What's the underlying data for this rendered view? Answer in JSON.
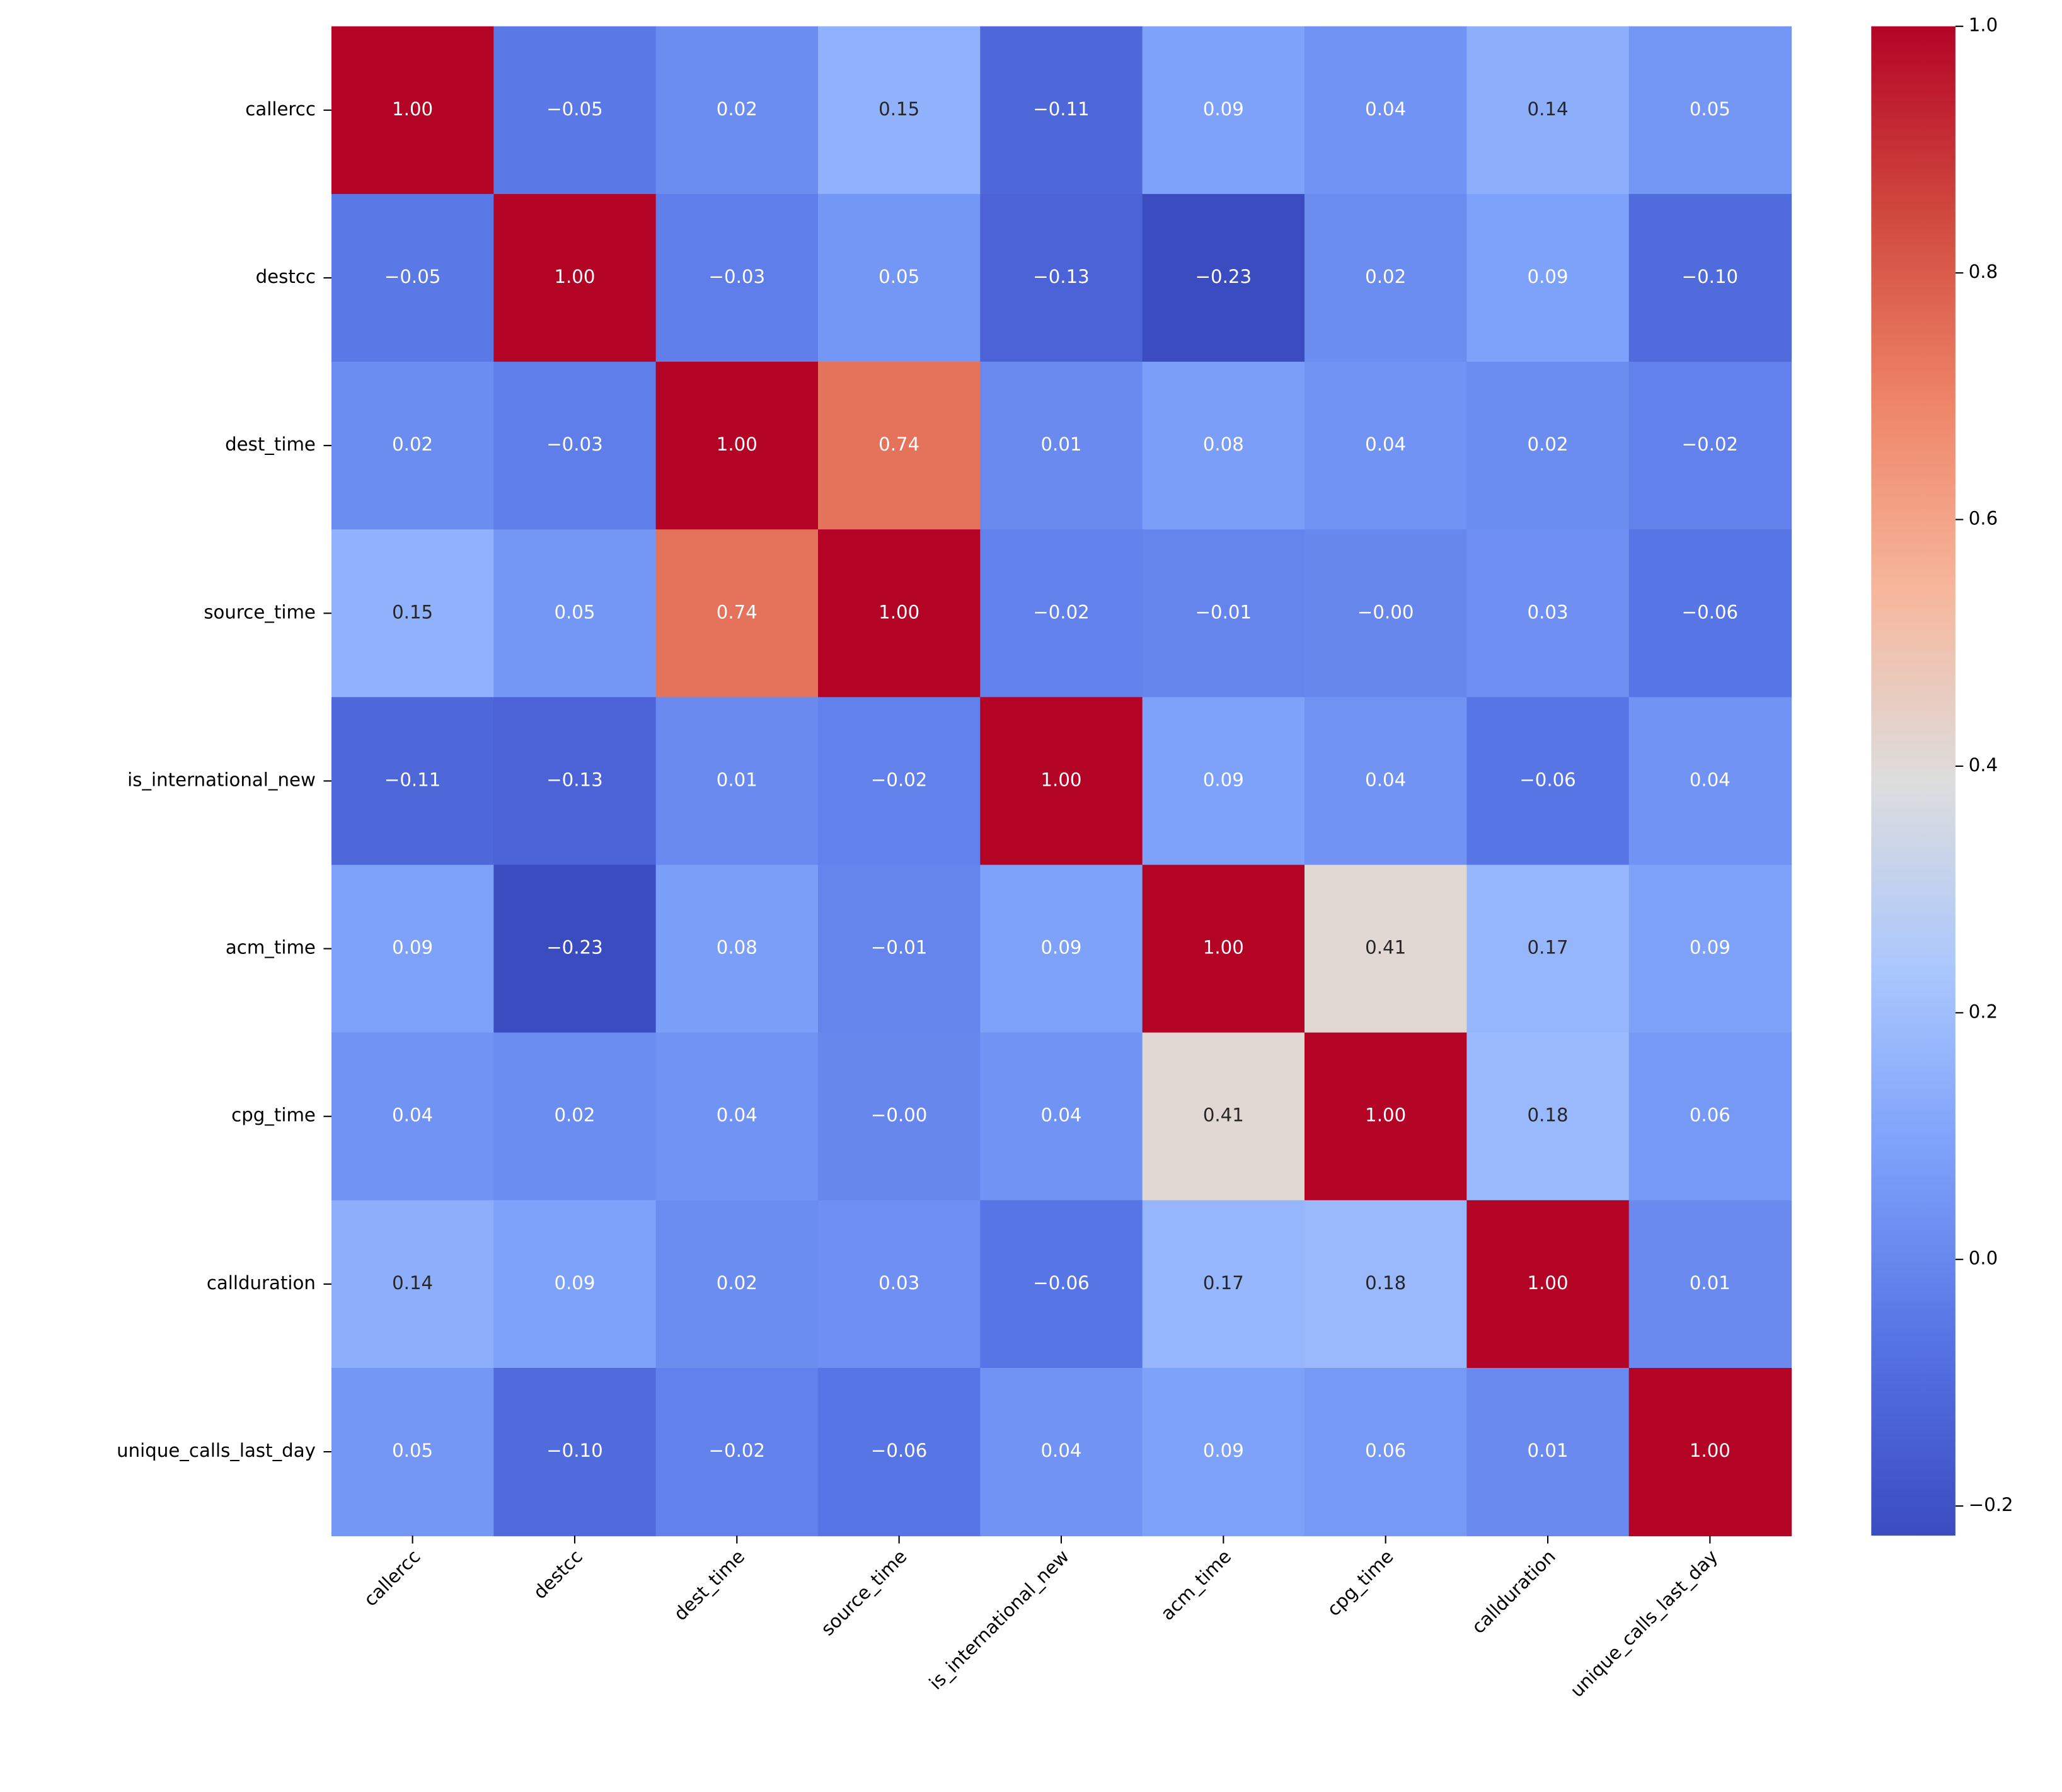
{
  "chart_data": {
    "type": "heatmap",
    "x_categories": [
      "callercc",
      "destcc",
      "dest_time",
      "source_time",
      "is_international_new",
      "acm_time",
      "cpg_time",
      "callduration",
      "unique_calls_last_day"
    ],
    "y_categories": [
      "callercc",
      "destcc",
      "dest_time",
      "source_time",
      "is_international_new",
      "acm_time",
      "cpg_time",
      "callduration",
      "unique_calls_last_day"
    ],
    "values": [
      [
        1.0,
        -0.05,
        0.02,
        0.15,
        -0.11,
        0.09,
        0.04,
        0.14,
        0.05
      ],
      [
        -0.05,
        1.0,
        -0.03,
        0.05,
        -0.13,
        -0.23,
        0.02,
        0.09,
        -0.1
      ],
      [
        0.02,
        -0.03,
        1.0,
        0.74,
        0.01,
        0.08,
        0.04,
        0.02,
        -0.02
      ],
      [
        0.15,
        0.05,
        0.74,
        1.0,
        -0.02,
        -0.01,
        0,
        0.03,
        -0.06
      ],
      [
        -0.11,
        -0.13,
        0.01,
        -0.02,
        1.0,
        0.09,
        0.04,
        -0.06,
        0.04
      ],
      [
        0.09,
        -0.23,
        0.08,
        -0.01,
        0.09,
        1.0,
        0.41,
        0.17,
        0.09
      ],
      [
        0.04,
        0.02,
        0.04,
        0,
        0.04,
        0.41,
        1.0,
        0.18,
        0.06
      ],
      [
        0.14,
        0.09,
        0.02,
        0.03,
        -0.06,
        0.17,
        0.18,
        1.0,
        0.01
      ],
      [
        0.05,
        -0.1,
        -0.02,
        -0.06,
        0.04,
        0.09,
        0.06,
        0.01,
        1.0
      ]
    ],
    "value_labels": [
      [
        "1.00",
        "−0.05",
        "0.02",
        "0.15",
        "−0.11",
        "0.09",
        "0.04",
        "0.14",
        "0.05"
      ],
      [
        "−0.05",
        "1.00",
        "−0.03",
        "0.05",
        "−0.13",
        "−0.23",
        "0.02",
        "0.09",
        "−0.10"
      ],
      [
        "0.02",
        "−0.03",
        "1.00",
        "0.74",
        "0.01",
        "0.08",
        "0.04",
        "0.02",
        "−0.02"
      ],
      [
        "0.15",
        "0.05",
        "0.74",
        "1.00",
        "−0.02",
        "−0.01",
        "−0.00",
        "0.03",
        "−0.06"
      ],
      [
        "−0.11",
        "−0.13",
        "0.01",
        "−0.02",
        "1.00",
        "0.09",
        "0.04",
        "−0.06",
        "0.04"
      ],
      [
        "0.09",
        "−0.23",
        "0.08",
        "−0.01",
        "0.09",
        "1.00",
        "0.41",
        "0.17",
        "0.09"
      ],
      [
        "0.04",
        "0.02",
        "0.04",
        "−0.00",
        "0.04",
        "0.41",
        "1.00",
        "0.18",
        "0.06"
      ],
      [
        "0.14",
        "0.09",
        "0.02",
        "0.03",
        "−0.06",
        "0.17",
        "0.18",
        "1.00",
        "0.01"
      ],
      [
        "0.05",
        "−0.10",
        "−0.02",
        "−0.06",
        "0.04",
        "0.09",
        "0.06",
        "0.01",
        "1.00"
      ]
    ],
    "colormap": "coolwarm",
    "clim": [
      -0.224,
      1.0
    ],
    "cticks": [
      {
        "value": -0.2,
        "label": "−0.2"
      },
      {
        "value": 0,
        "label": "0.0"
      },
      0.2,
      0.4,
      0.6,
      0.8,
      {
        "value": 1.0,
        "label": "1.0"
      }
    ]
  }
}
